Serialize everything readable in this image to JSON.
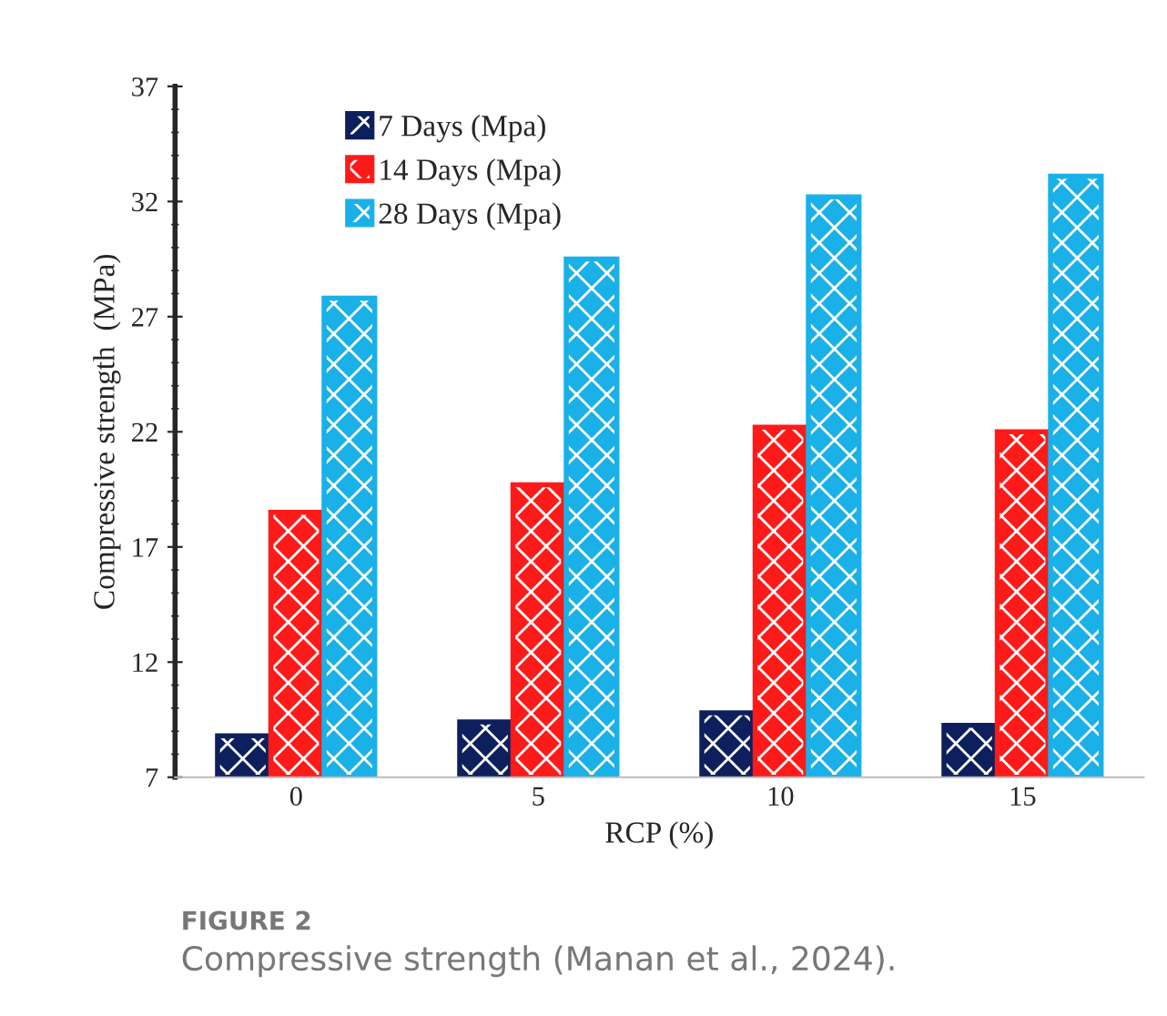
{
  "chart_data": {
    "type": "bar",
    "xlabel": "RCP (%)",
    "ylabel": "Compressive strength  (MPa)",
    "categories": [
      "0",
      "5",
      "10",
      "15"
    ],
    "series": [
      {
        "name": "7 Days (Mpa)",
        "color": "#0d1f5c",
        "values": [
          8.8,
          9.4,
          9.8,
          9.25
        ]
      },
      {
        "name": "14 Days (Mpa)",
        "color": "#ff1a1a",
        "values": [
          18.5,
          19.7,
          22.2,
          22.0
        ]
      },
      {
        "name": "28 Days (Mpa)",
        "color": "#1ab0e8",
        "values": [
          27.8,
          29.5,
          32.2,
          33.1
        ]
      }
    ],
    "ylim": [
      7,
      37
    ],
    "yticks": [
      7,
      12,
      17,
      22,
      27,
      32,
      37
    ],
    "grid": false,
    "legend": "top left",
    "annotations": [
      "FIGURE 2",
      "Compressive strength (Manan et al., 2024)."
    ]
  }
}
